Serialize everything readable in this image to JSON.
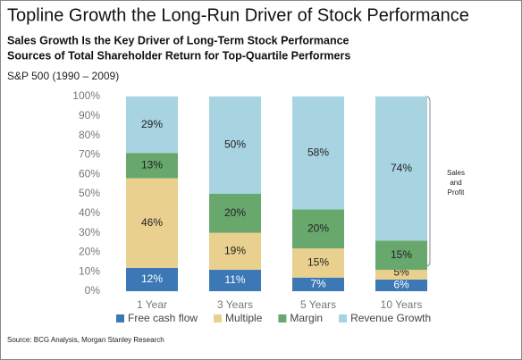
{
  "chart_data": {
    "type": "stacked_bar",
    "title": "Topline Growth the Long-Run Driver of Stock Performance",
    "subtitle": [
      "Sales Growth Is the Key Driver of Long-Term Stock Performance",
      "Sources of Total Shareholder Return for Top-Quartile Performers"
    ],
    "note": "S&P 500 (1990 – 2009)",
    "source": "Source: BCG Analysis, Morgan Stanley Research",
    "annotation": [
      "Sales",
      "and",
      "Profit"
    ],
    "categories": [
      "1 Year",
      "3 Years",
      "5 Years",
      "10 Years"
    ],
    "series": [
      {
        "name": "Free cash flow",
        "color": "#3b78b5",
        "values": [
          12,
          11,
          7,
          6
        ],
        "value_labels": [
          "12%",
          "11%",
          "7%",
          "6%"
        ]
      },
      {
        "name": "Multiple",
        "color": "#ead08f",
        "values": [
          46,
          19,
          15,
          5
        ],
        "value_labels": [
          "46%",
          "19%",
          "15%",
          "5%"
        ]
      },
      {
        "name": "Margin",
        "color": "#68a86d",
        "values": [
          13,
          20,
          20,
          15
        ],
        "value_labels": [
          "13%",
          "20%",
          "20%",
          "15%"
        ]
      },
      {
        "name": "Revenue Growth",
        "color": "#a8d3e1",
        "values": [
          29,
          50,
          58,
          74
        ],
        "value_labels": [
          "29%",
          "50%",
          "58%",
          "74%"
        ]
      }
    ],
    "ylim": [
      0,
      100
    ],
    "yticks": [
      {
        "value": 0,
        "label": "0%"
      },
      {
        "value": 10,
        "label": "10%"
      },
      {
        "value": 20,
        "label": "20%"
      },
      {
        "value": 30,
        "label": "30%"
      },
      {
        "value": 40,
        "label": "40%"
      },
      {
        "value": 50,
        "label": "50%"
      },
      {
        "value": 60,
        "label": "60%"
      },
      {
        "value": 70,
        "label": "70%"
      },
      {
        "value": 80,
        "label": "80%"
      },
      {
        "value": 90,
        "label": "90%"
      },
      {
        "value": 100,
        "label": "100%"
      }
    ],
    "grid": false
  }
}
